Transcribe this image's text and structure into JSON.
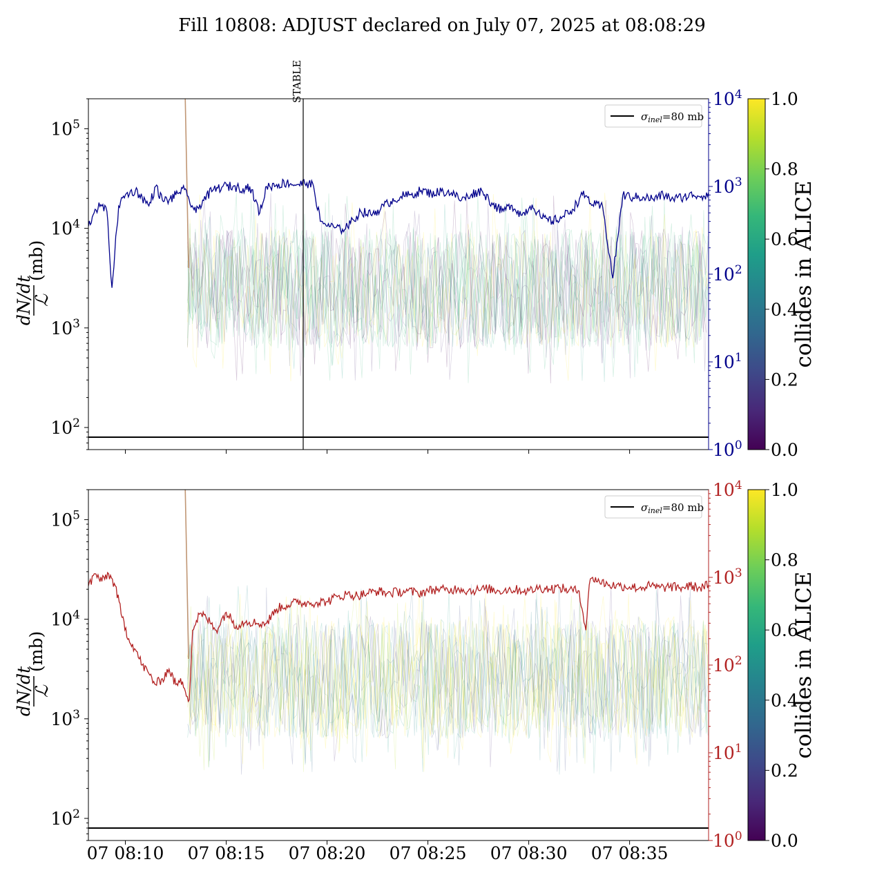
{
  "figure": {
    "title": "Fill 10808: ADJUST declared on July 07, 2025 at 08:08:29"
  },
  "chart_data": [
    {
      "type": "line",
      "panel": "top",
      "ylabel_fraction_num": "dN/dt",
      "ylabel_fraction_den": "ℒ",
      "ylabel_unit": "(mb)",
      "yscale": "log",
      "ylim": [
        60,
        200000
      ],
      "y_ticks": [
        {
          "value": 100,
          "base": "10",
          "exp": "2"
        },
        {
          "value": 1000,
          "base": "10",
          "exp": "3"
        },
        {
          "value": 10000,
          "base": "10",
          "exp": "4"
        },
        {
          "value": 100000,
          "base": "10",
          "exp": "5"
        }
      ],
      "xlim": [
        "07 08:08:10",
        "07 08:38:55"
      ],
      "x_ticks": [],
      "y2scale": "log",
      "y2lim": [
        1,
        10000
      ],
      "y2_color": "#00008b",
      "y2_ticks": [
        {
          "value": 1,
          "base": "10",
          "exp": "0"
        },
        {
          "value": 10,
          "base": "10",
          "exp": "1"
        },
        {
          "value": 100,
          "base": "10",
          "exp": "2"
        },
        {
          "value": 1000,
          "base": "10",
          "exp": "3"
        },
        {
          "value": 10000,
          "base": "10",
          "exp": "4"
        }
      ],
      "reference_line": {
        "value": 80,
        "label_sym": "σ",
        "label_sub": "inel",
        "label_rest": "=80 mb",
        "color": "#000000"
      },
      "vertical_marker": {
        "x": "07 08:18:49",
        "label": "STABLE"
      },
      "legend_position": "top-right",
      "series_y2": {
        "color": "#00008b",
        "x": [
          "07 08:08:10",
          "07 08:08:30",
          "07 08:08:50",
          "07 08:09:05",
          "07 08:09:20",
          "07 08:09:40",
          "07 08:10:00",
          "07 08:10:30",
          "07 08:10:50",
          "07 08:11:10",
          "07 08:11:30",
          "07 08:11:50",
          "07 08:12:10",
          "07 08:12:30",
          "07 08:12:50",
          "07 08:13:10",
          "07 08:13:30",
          "07 08:13:50",
          "07 08:14:20",
          "07 08:14:50",
          "07 08:15:20",
          "07 08:15:50",
          "07 08:16:10",
          "07 08:16:40",
          "07 08:17:00",
          "07 08:17:30",
          "07 08:18:00",
          "07 08:18:30",
          "07 08:19:00",
          "07 08:19:20",
          "07 08:19:40",
          "07 08:20:10",
          "07 08:20:40",
          "07 08:21:10",
          "07 08:21:40",
          "07 08:22:10",
          "07 08:22:40",
          "07 08:23:10",
          "07 08:23:40",
          "07 08:24:10",
          "07 08:24:40",
          "07 08:25:10",
          "07 08:25:40",
          "07 08:26:10",
          "07 08:26:40",
          "07 08:27:10",
          "07 08:27:40",
          "07 08:28:10",
          "07 08:28:40",
          "07 08:29:10",
          "07 08:29:40",
          "07 08:30:10",
          "07 08:30:40",
          "07 08:31:10",
          "07 08:31:40",
          "07 08:32:10",
          "07 08:32:40",
          "07 08:32:55",
          "07 08:33:10",
          "07 08:33:40",
          "07 08:34:10",
          "07 08:34:40",
          "07 08:35:10",
          "07 08:35:40",
          "07 08:36:10",
          "07 08:36:40",
          "07 08:37:10",
          "07 08:37:40",
          "07 08:38:10",
          "07 08:38:40",
          "07 08:38:55"
        ],
        "y": [
          350,
          550,
          600,
          520,
          70,
          600,
          800,
          900,
          750,
          600,
          1000,
          700,
          700,
          800,
          950,
          700,
          500,
          700,
          900,
          1000,
          1000,
          950,
          1000,
          500,
          1000,
          1050,
          1100,
          1050,
          1100,
          1000,
          400,
          350,
          320,
          380,
          520,
          480,
          560,
          680,
          770,
          800,
          900,
          830,
          880,
          850,
          700,
          820,
          900,
          650,
          520,
          610,
          470,
          620,
          430,
          400,
          450,
          550,
          800,
          750,
          620,
          580,
          90,
          800,
          750,
          760,
          720,
          800,
          720,
          760,
          800,
          780,
          850
        ]
      },
      "faint_band": {
        "description_color_low": "#440154",
        "color_high": "#fde725",
        "median": 2500,
        "low": 800,
        "high": 6000
      }
    },
    {
      "type": "line",
      "panel": "bottom",
      "ylabel_fraction_num": "dN/dt",
      "ylabel_fraction_den": "ℒ",
      "ylabel_unit": "(mb)",
      "yscale": "log",
      "ylim": [
        60,
        200000
      ],
      "y_ticks": [
        {
          "value": 100,
          "base": "10",
          "exp": "2"
        },
        {
          "value": 1000,
          "base": "10",
          "exp": "3"
        },
        {
          "value": 10000,
          "base": "10",
          "exp": "4"
        },
        {
          "value": 100000,
          "base": "10",
          "exp": "5"
        }
      ],
      "xlim": [
        "07 08:08:10",
        "07 08:38:55"
      ],
      "x_ticks": [
        "07 08:10",
        "07 08:15",
        "07 08:20",
        "07 08:25",
        "07 08:30",
        "07 08:35"
      ],
      "y2scale": "log",
      "y2lim": [
        1,
        10000
      ],
      "y2_color": "#b22222",
      "y2_ticks": [
        {
          "value": 1,
          "base": "10",
          "exp": "0"
        },
        {
          "value": 10,
          "base": "10",
          "exp": "1"
        },
        {
          "value": 100,
          "base": "10",
          "exp": "2"
        },
        {
          "value": 1000,
          "base": "10",
          "exp": "3"
        },
        {
          "value": 10000,
          "base": "10",
          "exp": "4"
        }
      ],
      "reference_line": {
        "value": 80,
        "label_sym": "σ",
        "label_sub": "inel",
        "label_rest": "=80 mb",
        "color": "#000000"
      },
      "legend_position": "top-right",
      "series_y2": {
        "color": "#b22222",
        "x": [
          "07 08:08:10",
          "07 08:08:30",
          "07 08:08:50",
          "07 08:09:10",
          "07 08:09:30",
          "07 08:09:50",
          "07 08:10:10",
          "07 08:10:30",
          "07 08:10:50",
          "07 08:11:10",
          "07 08:11:30",
          "07 08:11:50",
          "07 08:12:10",
          "07 08:12:30",
          "07 08:12:50",
          "07 08:13:10",
          "07 08:13:20",
          "07 08:13:40",
          "07 08:14:00",
          "07 08:14:30",
          "07 08:15:00",
          "07 08:15:30",
          "07 08:16:00",
          "07 08:16:30",
          "07 08:17:00",
          "07 08:17:30",
          "07 08:18:00",
          "07 08:18:30",
          "07 08:19:00",
          "07 08:19:30",
          "07 08:20:00",
          "07 08:20:30",
          "07 08:21:00",
          "07 08:21:30",
          "07 08:22:00",
          "07 08:22:30",
          "07 08:23:00",
          "07 08:23:30",
          "07 08:24:00",
          "07 08:24:30",
          "07 08:25:00",
          "07 08:25:30",
          "07 08:26:00",
          "07 08:26:30",
          "07 08:27:00",
          "07 08:27:30",
          "07 08:28:00",
          "07 08:28:30",
          "07 08:29:00",
          "07 08:29:30",
          "07 08:30:00",
          "07 08:30:30",
          "07 08:31:00",
          "07 08:31:30",
          "07 08:32:00",
          "07 08:32:30",
          "07 08:32:50",
          "07 08:33:00",
          "07 08:33:10",
          "07 08:33:30",
          "07 08:34:00",
          "07 08:34:30",
          "07 08:35:00",
          "07 08:35:30",
          "07 08:36:00",
          "07 08:36:30",
          "07 08:37:00",
          "07 08:37:30",
          "07 08:38:00",
          "07 08:38:30",
          "07 08:38:55"
        ],
        "y": [
          800,
          1100,
          900,
          1100,
          800,
          350,
          200,
          150,
          100,
          80,
          60,
          70,
          90,
          60,
          65,
          40,
          250,
          380,
          350,
          250,
          400,
          280,
          320,
          300,
          300,
          440,
          480,
          520,
          510,
          520,
          530,
          600,
          640,
          620,
          660,
          700,
          660,
          680,
          700,
          660,
          700,
          740,
          700,
          760,
          700,
          720,
          740,
          700,
          730,
          720,
          700,
          760,
          740,
          760,
          720,
          700,
          250,
          820,
          1000,
          900,
          820,
          800,
          780,
          760,
          800,
          760,
          780,
          760,
          800,
          760,
          820
        ]
      },
      "faint_band": {
        "color_low": "#440154",
        "color_high": "#fde725",
        "median": 2500,
        "low": 800,
        "high": 6000
      }
    }
  ],
  "colorbar": {
    "label": "collides in ALICE",
    "ticks": [
      "0.0",
      "0.2",
      "0.4",
      "0.6",
      "0.8",
      "1.0"
    ],
    "colormap": "viridis",
    "stops": [
      "#440154",
      "#482878",
      "#3e4989",
      "#31688e",
      "#26828e",
      "#1f9e89",
      "#35b779",
      "#6ece58",
      "#b5de2b",
      "#fde725"
    ]
  }
}
